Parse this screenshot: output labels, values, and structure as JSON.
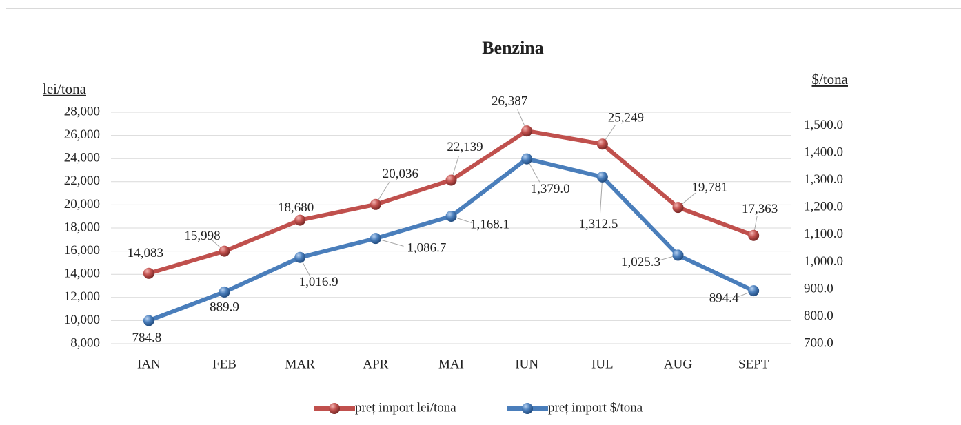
{
  "chart_data": {
    "type": "line",
    "title": "Benzina",
    "ylabel": "lei/tona",
    "y2label": "$/tona",
    "categories": [
      "IAN",
      "FEB",
      "MAR",
      "APR",
      "MAI",
      "IUN",
      "IUL",
      "AUG",
      "SEPT"
    ],
    "series": [
      {
        "name": "preț import lei/tona",
        "color": "#c0504d",
        "values": [
          14083,
          15998,
          18680,
          20036,
          22139,
          26387,
          25249,
          19781,
          17363
        ],
        "value_labels": [
          "14,083",
          "15,998",
          "18,680",
          "20,036",
          "22,139",
          "26,387",
          "25,249",
          "19,781",
          "17,363"
        ]
      },
      {
        "name": "preț import $/tona",
        "color": "#4a7ebb",
        "axis": "y2",
        "values": [
          784.8,
          889.9,
          1016.9,
          1086.7,
          1168.1,
          1379.0,
          1312.5,
          1025.3,
          894.4
        ],
        "value_labels": [
          "784.8",
          "889.9",
          "1,016.9",
          "1,086.7",
          "1,168.1",
          "1,379.0",
          "1,312.5",
          "1,025.3",
          "894.4"
        ]
      }
    ],
    "ylim": [
      8000,
      28000
    ],
    "yticks": [
      {
        "value": 8000,
        "label": "8,000"
      },
      {
        "value": 10000,
        "label": "10,000"
      },
      {
        "value": 12000,
        "label": "12,000"
      },
      {
        "value": 14000,
        "label": "14,000"
      },
      {
        "value": 16000,
        "label": "16,000"
      },
      {
        "value": 18000,
        "label": "18,000"
      },
      {
        "value": 20000,
        "label": "20,000"
      },
      {
        "value": 22000,
        "label": "22,000"
      },
      {
        "value": 24000,
        "label": "24,000"
      },
      {
        "value": 26000,
        "label": "26,000"
      },
      {
        "value": 28000,
        "label": "28,000"
      }
    ],
    "y2lim": [
      700,
      1550
    ],
    "y2ticks": [
      {
        "value": 700,
        "label": "700.0"
      },
      {
        "value": 800,
        "label": "800.0"
      },
      {
        "value": 900,
        "label": "900.0"
      },
      {
        "value": 1000,
        "label": "1,000.0"
      },
      {
        "value": 1100,
        "label": "1,100.0"
      },
      {
        "value": 1200,
        "label": "1,200.0"
      },
      {
        "value": 1300,
        "label": "1,300.0"
      },
      {
        "value": 1400,
        "label": "1,400.0"
      },
      {
        "value": 1500,
        "label": "1,500.0"
      }
    ],
    "grid": true,
    "legend": "bottom"
  }
}
